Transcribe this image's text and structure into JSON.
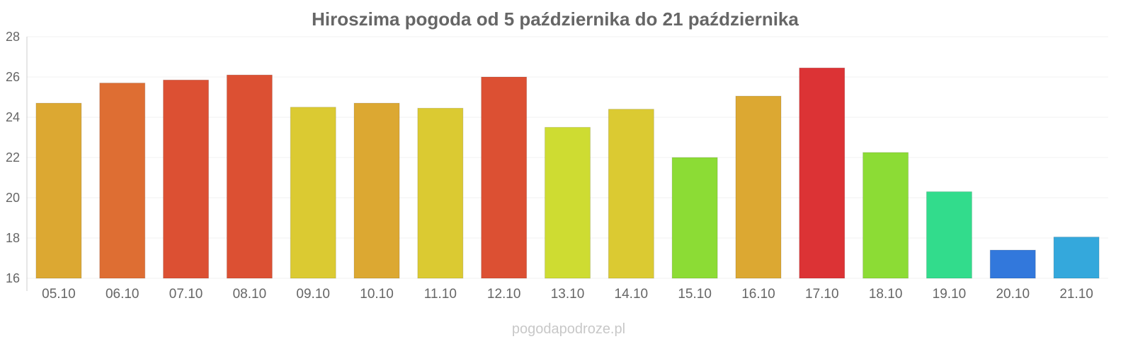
{
  "chart_data": {
    "type": "bar",
    "title": "Hiroszima pogoda od 5 października do 21 października",
    "xlabel": "",
    "ylabel": "",
    "ylim": [
      16,
      28
    ],
    "yticks": [
      16,
      18,
      20,
      22,
      24,
      26,
      28
    ],
    "grid": true,
    "legend": "none",
    "categories": [
      "05.10",
      "06.10",
      "07.10",
      "08.10",
      "09.10",
      "10.10",
      "11.10",
      "12.10",
      "13.10",
      "14.10",
      "15.10",
      "16.10",
      "17.10",
      "18.10",
      "19.10",
      "20.10",
      "21.10"
    ],
    "values": [
      24.7,
      25.7,
      25.85,
      26.1,
      24.5,
      24.7,
      24.45,
      26.0,
      23.5,
      24.4,
      22.0,
      25.05,
      26.45,
      22.25,
      20.3,
      17.4,
      18.05
    ],
    "colors": [
      "#dca832",
      "#de6e33",
      "#dc5033",
      "#dc5033",
      "#dbca32",
      "#dca832",
      "#dbca32",
      "#dc5033",
      "#cedc32",
      "#dbca32",
      "#8cdc35",
      "#dca832",
      "#dc3335",
      "#8cdc35",
      "#32dc8c",
      "#3278dc",
      "#34a8dc"
    ]
  },
  "watermark": "pogodapodroze.pl"
}
